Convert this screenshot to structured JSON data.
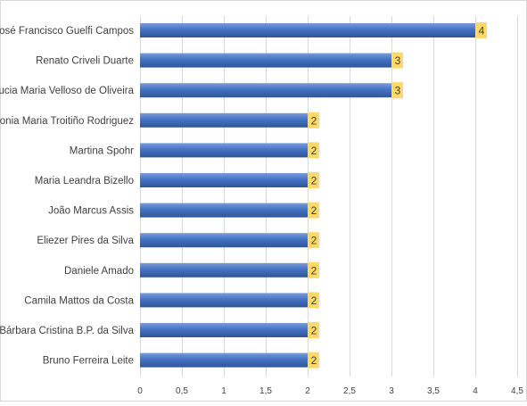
{
  "chart_data": {
    "type": "bar",
    "orientation": "horizontal",
    "categories": [
      "José Francisco Guelfi Campos",
      "Renato Criveli Duarte",
      "Lucia Maria Velloso de Oliveira",
      "Sonia Maria Troitiño Rodriguez",
      "Martina Spohr",
      "Maria Leandra Bizello",
      "João Marcus Assis",
      "Eliezer Pires da Silva",
      "Daniele Amado",
      "Camila Mattos da Costa",
      "Bárbara Cristina B.P. da Silva",
      "Bruno Ferreira Leite"
    ],
    "values": [
      4,
      3,
      3,
      2,
      2,
      2,
      2,
      2,
      2,
      2,
      2,
      2
    ],
    "xlim": [
      0,
      4.5
    ],
    "x_ticks": [
      0,
      0.5,
      1,
      1.5,
      2,
      2.5,
      3,
      3.5,
      4,
      4.5
    ],
    "x_tick_labels": [
      "0",
      "0,5",
      "1",
      "1,5",
      "2",
      "2,5",
      "3",
      "3,5",
      "4",
      "4,5"
    ],
    "grid": true,
    "data_labels": true,
    "title": "",
    "xlabel": "",
    "ylabel": "",
    "colors": {
      "bar": "#4472C4",
      "bar_light": "#7A9BDA",
      "bar_dark": "#2F5597",
      "label_bg": "#FFD966",
      "text": "#404040",
      "grid": "#D9D9D9",
      "border": "#D9D9D9"
    }
  }
}
